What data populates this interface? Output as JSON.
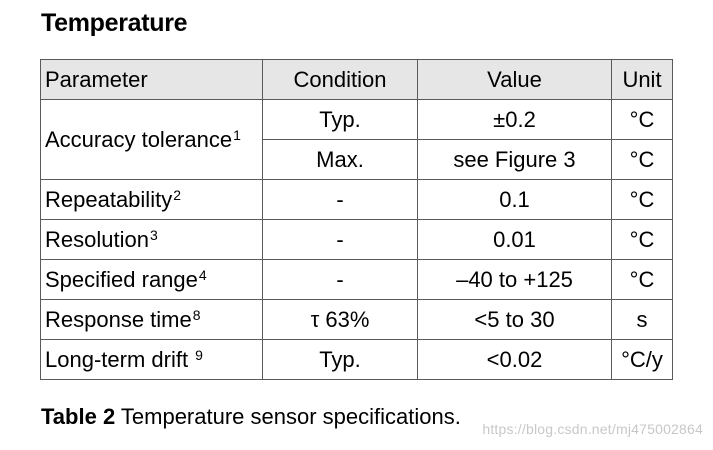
{
  "heading": "Temperature",
  "table": {
    "headers": [
      "Parameter",
      "Condition",
      "Value",
      "Unit"
    ],
    "rows": [
      {
        "parameter": "Accuracy tolerance",
        "footnote": "1",
        "condition": "Typ.",
        "value": "±0.2",
        "unit": "°C"
      },
      {
        "parameter": "",
        "footnote": "",
        "condition": "Max.",
        "value": "see Figure 3",
        "unit": "°C"
      },
      {
        "parameter": "Repeatability",
        "footnote": "2",
        "condition": "-",
        "value": "0.1",
        "unit": "°C"
      },
      {
        "parameter": "Resolution",
        "footnote": "3",
        "condition": "-",
        "value": "0.01",
        "unit": "°C"
      },
      {
        "parameter": "Specified range",
        "footnote": "4",
        "condition": "-",
        "value": "–40 to +125",
        "unit": "°C"
      },
      {
        "parameter": "Response time",
        "footnote": "8",
        "condition": "τ 63%",
        "value": "<5 to 30",
        "unit": "s"
      },
      {
        "parameter": "Long-term drift ",
        "footnote": "9",
        "condition": "Typ.",
        "value": "<0.02",
        "unit": "°C/y"
      }
    ]
  },
  "caption": {
    "label": "Table 2",
    "text": " Temperature sensor specifications."
  },
  "watermark": "https://blog.csdn.net/mj475002864"
}
